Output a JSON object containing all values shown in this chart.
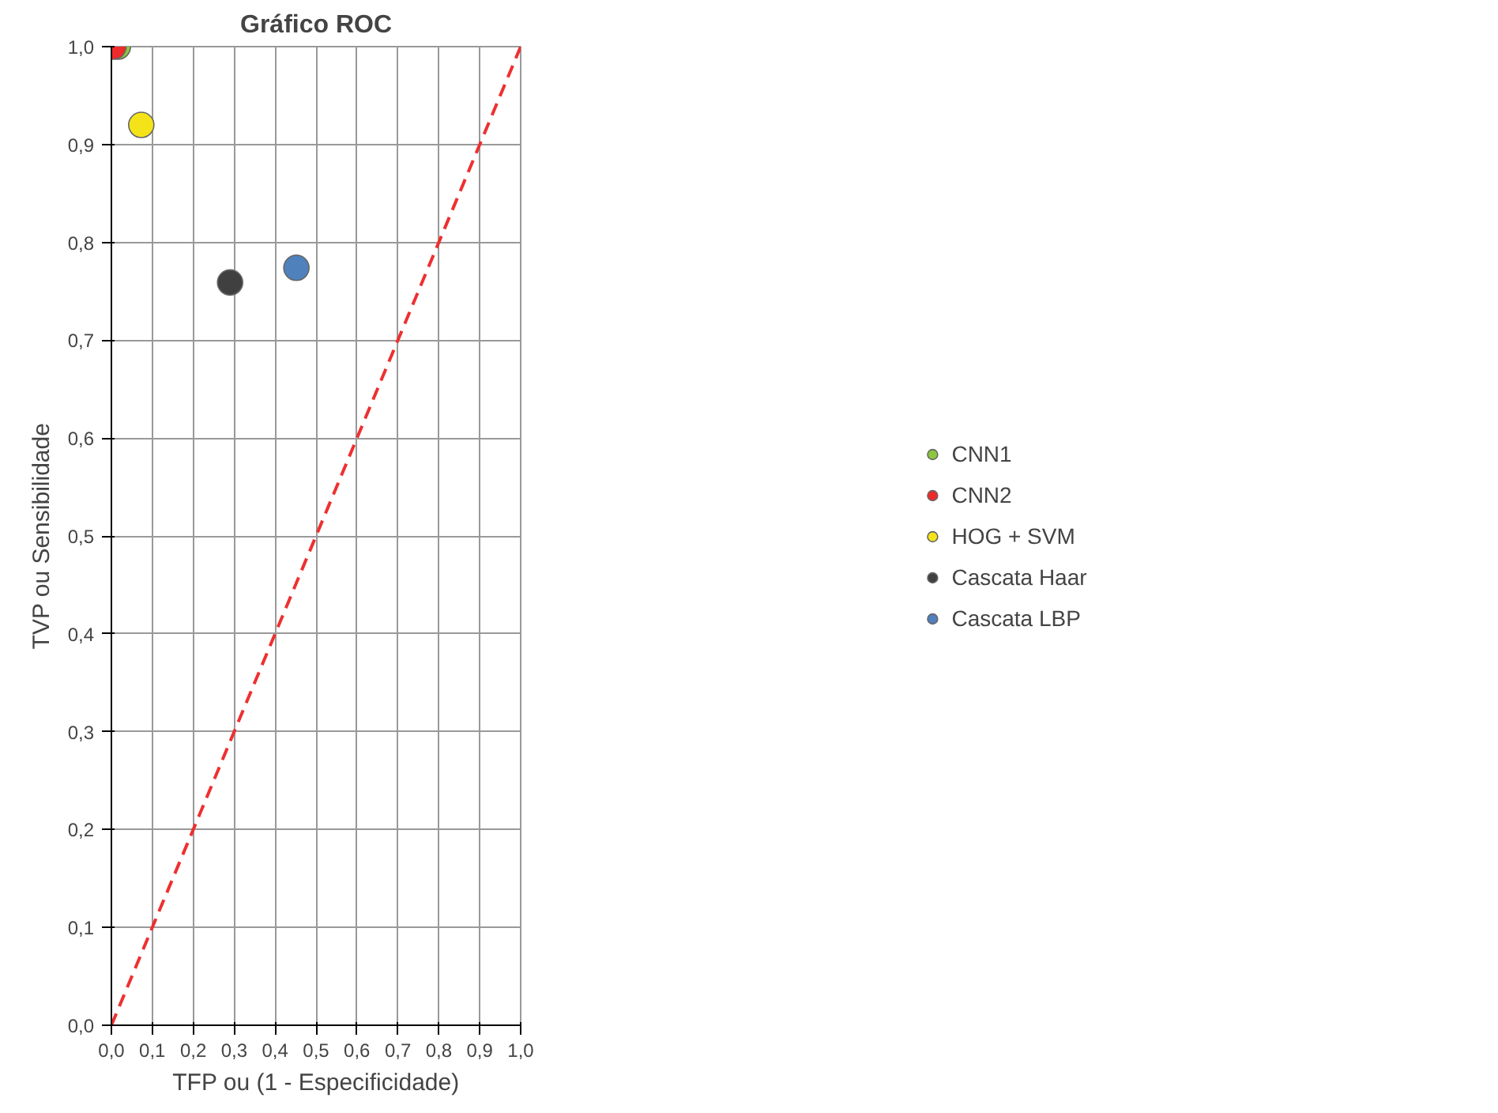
{
  "chart_data": {
    "type": "scatter",
    "title": "Gráfico ROC",
    "xlabel": "TFP ou (1 - Especificidade)",
    "ylabel": "TVP ou Sensibilidade",
    "xlim": [
      0,
      1
    ],
    "ylim": [
      0,
      1
    ],
    "xticks": [
      {
        "value": 0,
        "label": "0,0"
      },
      {
        "value": 0.1,
        "label": "0,1"
      },
      {
        "value": 0.2,
        "label": "0,2"
      },
      {
        "value": 0.3,
        "label": "0,3"
      },
      {
        "value": 0.4,
        "label": "0,4"
      },
      {
        "value": 0.5,
        "label": "0,5"
      },
      {
        "value": 0.6,
        "label": "0,6"
      },
      {
        "value": 0.7,
        "label": "0,7"
      },
      {
        "value": 0.8,
        "label": "0,8"
      },
      {
        "value": 0.9,
        "label": "0,9"
      },
      {
        "value": 1,
        "label": "1,0"
      }
    ],
    "yticks": [
      {
        "value": 0,
        "label": "0,0"
      },
      {
        "value": 0.1,
        "label": "0,1"
      },
      {
        "value": 0.2,
        "label": "0,2"
      },
      {
        "value": 0.3,
        "label": "0,3"
      },
      {
        "value": 0.4,
        "label": "0,4"
      },
      {
        "value": 0.5,
        "label": "0,5"
      },
      {
        "value": 0.6,
        "label": "0,6"
      },
      {
        "value": 0.7,
        "label": "0,7"
      },
      {
        "value": 0.8,
        "label": "0,8"
      },
      {
        "value": 0.9,
        "label": "0,9"
      },
      {
        "value": 1,
        "label": "1,0"
      }
    ],
    "grid": true,
    "legend": "right",
    "marker": "circle",
    "series": [
      {
        "type": "line",
        "x": [
          0,
          1
        ],
        "values": [
          0,
          1
        ],
        "color": "#ee3030",
        "line_style": "dashed",
        "marker": "none"
      },
      {
        "name": "CNN1",
        "x": [
          0.016
        ],
        "values": [
          1.0
        ],
        "color": "#8dc63f"
      },
      {
        "name": "CNN2",
        "x": [
          0.005
        ],
        "values": [
          1.0
        ],
        "color": "#ee2a2a"
      },
      {
        "name": "HOG + SVM",
        "x": [
          0.073
        ],
        "values": [
          0.92
        ],
        "color": "#f5e31a"
      },
      {
        "name": "Cascata Haar",
        "x": [
          0.29
        ],
        "values": [
          0.759
        ],
        "color": "#404040"
      },
      {
        "name": "Cascata LBP",
        "x": [
          0.452
        ],
        "values": [
          0.774
        ],
        "color": "#4f81bd"
      }
    ]
  }
}
